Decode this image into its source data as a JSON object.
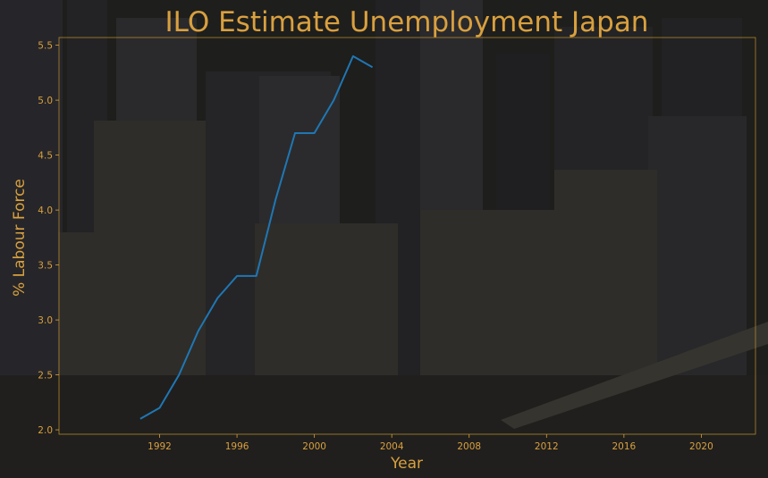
{
  "chart_data": {
    "type": "line",
    "title": "ILO Estimate Unemployment Japan",
    "xlabel": "Year",
    "ylabel": "% Labour Force",
    "xlim": [
      1986.8,
      2022.8
    ],
    "ylim": [
      1.96,
      5.57
    ],
    "xticks": [
      1992,
      1996,
      2000,
      2004,
      2008,
      2012,
      2016,
      2020
    ],
    "yticks": [
      2.0,
      2.5,
      3.0,
      3.5,
      4.0,
      4.5,
      5.0,
      5.5
    ],
    "grid": false,
    "series": [
      {
        "x": [
          1991,
          1992,
          1993,
          1994,
          1995,
          1996,
          1997,
          1998,
          1999,
          2000,
          2001,
          2002,
          2003
        ],
        "y": [
          2.1,
          2.2,
          2.5,
          2.9,
          3.2,
          3.4,
          3.4,
          4.1,
          4.7,
          4.7,
          5.0,
          5.4,
          5.3
        ]
      }
    ]
  },
  "colors": {
    "text": "#d9a03f",
    "line": "#1f77b4",
    "frame": "#c8962f"
  }
}
